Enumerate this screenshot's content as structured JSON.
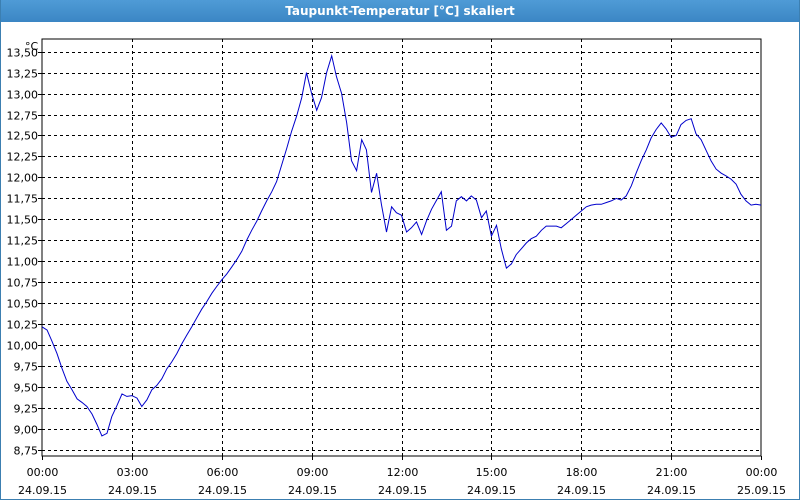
{
  "window": {
    "title": "Taupunkt-Temperatur [°C] skaliert"
  },
  "colors": {
    "titlebar": "#3b86c4",
    "line": "#0000cc",
    "grid": "#000000"
  },
  "chart_data": {
    "type": "line",
    "title": "Taupunkt-Temperatur [°C] skaliert",
    "ylabel": "°C",
    "xlabel": "",
    "ylim": [
      8.75,
      13.5
    ],
    "y_ticks": [
      {
        "value": 8.75,
        "label": "8,75"
      },
      {
        "value": 9.0,
        "label": "9,00"
      },
      {
        "value": 9.25,
        "label": "9,25"
      },
      {
        "value": 9.5,
        "label": "9,50"
      },
      {
        "value": 9.75,
        "label": "9,75"
      },
      {
        "value": 10.0,
        "label": "10,00"
      },
      {
        "value": 10.25,
        "label": "10,25"
      },
      {
        "value": 10.5,
        "label": "10,50"
      },
      {
        "value": 10.75,
        "label": "10,75"
      },
      {
        "value": 11.0,
        "label": "11,00"
      },
      {
        "value": 11.25,
        "label": "11,25"
      },
      {
        "value": 11.5,
        "label": "11,50"
      },
      {
        "value": 11.75,
        "label": "11,75"
      },
      {
        "value": 12.0,
        "label": "12,00"
      },
      {
        "value": 12.25,
        "label": "12,25"
      },
      {
        "value": 12.5,
        "label": "12,50"
      },
      {
        "value": 12.75,
        "label": "12,75"
      },
      {
        "value": 13.0,
        "label": "13,00"
      },
      {
        "value": 13.25,
        "label": "13,25"
      },
      {
        "value": 13.5,
        "label": "13,50"
      }
    ],
    "x_ticks": [
      {
        "value": 0,
        "time": "00:00",
        "date": "24.09.15"
      },
      {
        "value": 3,
        "time": "03:00",
        "date": "24.09.15"
      },
      {
        "value": 6,
        "time": "06:00",
        "date": "24.09.15"
      },
      {
        "value": 9,
        "time": "09:00",
        "date": "24.09.15"
      },
      {
        "value": 12,
        "time": "12:00",
        "date": "24.09.15"
      },
      {
        "value": 15,
        "time": "15:00",
        "date": "24.09.15"
      },
      {
        "value": 18,
        "time": "18:00",
        "date": "24.09.15"
      },
      {
        "value": 21,
        "time": "21:00",
        "date": "24.09.15"
      },
      {
        "value": 24,
        "time": "00:00",
        "date": "25.09.15"
      }
    ],
    "xlim": [
      0,
      24
    ],
    "grid": true,
    "series": [
      {
        "values": [
          [
            0.0,
            10.22
          ],
          [
            0.17,
            10.18
          ],
          [
            0.33,
            10.05
          ],
          [
            0.5,
            9.9
          ],
          [
            0.67,
            9.72
          ],
          [
            0.83,
            9.57
          ],
          [
            1.0,
            9.47
          ],
          [
            1.17,
            9.36
          ],
          [
            1.33,
            9.32
          ],
          [
            1.5,
            9.27
          ],
          [
            1.67,
            9.18
          ],
          [
            1.83,
            9.06
          ],
          [
            2.0,
            8.92
          ],
          [
            2.17,
            8.95
          ],
          [
            2.33,
            9.15
          ],
          [
            2.5,
            9.28
          ],
          [
            2.67,
            9.42
          ],
          [
            2.83,
            9.39
          ],
          [
            3.0,
            9.4
          ],
          [
            3.17,
            9.37
          ],
          [
            3.33,
            9.27
          ],
          [
            3.5,
            9.35
          ],
          [
            3.67,
            9.47
          ],
          [
            3.83,
            9.52
          ],
          [
            4.0,
            9.6
          ],
          [
            4.17,
            9.72
          ],
          [
            4.33,
            9.8
          ],
          [
            4.5,
            9.9
          ],
          [
            4.67,
            10.02
          ],
          [
            4.83,
            10.12
          ],
          [
            5.0,
            10.22
          ],
          [
            5.17,
            10.33
          ],
          [
            5.33,
            10.43
          ],
          [
            5.5,
            10.52
          ],
          [
            5.67,
            10.62
          ],
          [
            5.83,
            10.7
          ],
          [
            6.0,
            10.78
          ],
          [
            6.17,
            10.85
          ],
          [
            6.33,
            10.93
          ],
          [
            6.5,
            11.02
          ],
          [
            6.67,
            11.12
          ],
          [
            6.83,
            11.25
          ],
          [
            7.0,
            11.37
          ],
          [
            7.17,
            11.48
          ],
          [
            7.33,
            11.6
          ],
          [
            7.5,
            11.72
          ],
          [
            7.67,
            11.83
          ],
          [
            7.83,
            11.95
          ],
          [
            8.0,
            12.15
          ],
          [
            8.17,
            12.35
          ],
          [
            8.33,
            12.55
          ],
          [
            8.5,
            12.73
          ],
          [
            8.67,
            12.95
          ],
          [
            8.83,
            13.25
          ],
          [
            9.0,
            13.0
          ],
          [
            9.17,
            12.8
          ],
          [
            9.33,
            12.95
          ],
          [
            9.5,
            13.25
          ],
          [
            9.67,
            13.45
          ],
          [
            9.83,
            13.2
          ],
          [
            10.0,
            13.0
          ],
          [
            10.17,
            12.65
          ],
          [
            10.33,
            12.2
          ],
          [
            10.5,
            12.08
          ],
          [
            10.67,
            12.45
          ],
          [
            10.83,
            12.33
          ],
          [
            11.0,
            11.82
          ],
          [
            11.17,
            12.05
          ],
          [
            11.33,
            11.68
          ],
          [
            11.5,
            11.35
          ],
          [
            11.67,
            11.65
          ],
          [
            11.83,
            11.58
          ],
          [
            12.0,
            11.55
          ],
          [
            12.17,
            11.35
          ],
          [
            12.33,
            11.4
          ],
          [
            12.5,
            11.47
          ],
          [
            12.67,
            11.32
          ],
          [
            12.83,
            11.48
          ],
          [
            13.0,
            11.62
          ],
          [
            13.17,
            11.73
          ],
          [
            13.33,
            11.83
          ],
          [
            13.5,
            11.37
          ],
          [
            13.67,
            11.42
          ],
          [
            13.83,
            11.72
          ],
          [
            14.0,
            11.77
          ],
          [
            14.17,
            11.72
          ],
          [
            14.33,
            11.78
          ],
          [
            14.5,
            11.73
          ],
          [
            14.67,
            11.52
          ],
          [
            14.83,
            11.6
          ],
          [
            15.0,
            11.3
          ],
          [
            15.17,
            11.43
          ],
          [
            15.33,
            11.15
          ],
          [
            15.5,
            10.92
          ],
          [
            15.67,
            10.97
          ],
          [
            15.83,
            11.08
          ],
          [
            16.0,
            11.15
          ],
          [
            16.17,
            11.22
          ],
          [
            16.33,
            11.27
          ],
          [
            16.5,
            11.3
          ],
          [
            16.67,
            11.37
          ],
          [
            16.83,
            11.42
          ],
          [
            17.0,
            11.42
          ],
          [
            17.17,
            11.42
          ],
          [
            17.33,
            11.4
          ],
          [
            17.5,
            11.45
          ],
          [
            17.67,
            11.5
          ],
          [
            17.83,
            11.55
          ],
          [
            18.0,
            11.6
          ],
          [
            18.17,
            11.65
          ],
          [
            18.33,
            11.67
          ],
          [
            18.5,
            11.68
          ],
          [
            18.67,
            11.68
          ],
          [
            18.83,
            11.7
          ],
          [
            19.0,
            11.72
          ],
          [
            19.17,
            11.75
          ],
          [
            19.33,
            11.73
          ],
          [
            19.5,
            11.78
          ],
          [
            19.67,
            11.9
          ],
          [
            19.83,
            12.05
          ],
          [
            20.0,
            12.2
          ],
          [
            20.17,
            12.33
          ],
          [
            20.33,
            12.47
          ],
          [
            20.5,
            12.57
          ],
          [
            20.67,
            12.65
          ],
          [
            20.83,
            12.58
          ],
          [
            21.0,
            12.48
          ],
          [
            21.17,
            12.5
          ],
          [
            21.33,
            12.63
          ],
          [
            21.5,
            12.68
          ],
          [
            21.67,
            12.7
          ],
          [
            21.83,
            12.52
          ],
          [
            22.0,
            12.45
          ],
          [
            22.17,
            12.32
          ],
          [
            22.33,
            12.2
          ],
          [
            22.5,
            12.1
          ],
          [
            22.67,
            12.05
          ],
          [
            22.83,
            12.02
          ],
          [
            23.0,
            11.98
          ],
          [
            23.17,
            11.92
          ],
          [
            23.33,
            11.8
          ],
          [
            23.5,
            11.72
          ],
          [
            23.67,
            11.67
          ],
          [
            23.83,
            11.68
          ],
          [
            24.0,
            11.67
          ]
        ]
      }
    ]
  }
}
